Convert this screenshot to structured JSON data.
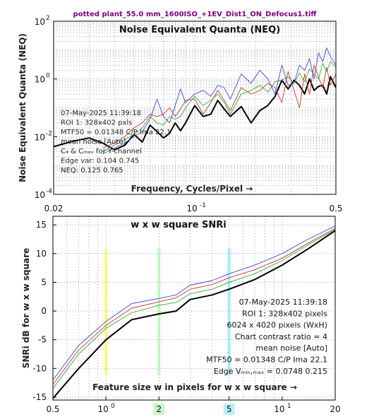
{
  "figure_title": "potted plant_55.0 mm_1600ISO_+1EV_Dist1_ON_Defocus1.tiff",
  "chart_data": [
    {
      "type": "line",
      "title": "Noise Equivalent Quanta (NEQ)",
      "xlabel": "Frequency, Cycles/Pixel →",
      "ylabel": "Noise Equivalent Quanta (NEQ)",
      "x_scale": "log",
      "y_scale": "log",
      "xlim": [
        0.02,
        0.5
      ],
      "ylim": [
        0.0001,
        100
      ],
      "x_ticks": [
        {
          "v": 0.02,
          "label": "0.02"
        },
        {
          "v": 0.1,
          "label": "10",
          "exp": "-1"
        },
        {
          "v": 0.5,
          "label": "0.5"
        }
      ],
      "y_ticks": [
        {
          "v": 0.0001,
          "base": "10",
          "exp": "-4"
        },
        {
          "v": 0.01,
          "base": "10",
          "exp": "-2"
        },
        {
          "v": 1,
          "base": "10",
          "exp": "0"
        },
        {
          "v": 100,
          "base": "10",
          "exp": "2"
        }
      ],
      "grid": true,
      "annotation": [
        "07-May-2025 11:39:18",
        "ROI 1:  328x402 pxls",
        "MTF50 = 0.01348 C/P  Ima 22.1",
        "mean noise  [Auto]",
        "C₄ & Cₘₐₓ for Y-channel",
        "Edge var:  0.104  0.745",
        "NEQ:      0.125  0.765"
      ],
      "series": [
        {
          "color": "#000000",
          "x": [
            0.02,
            0.025,
            0.03,
            0.035,
            0.04,
            0.045,
            0.05,
            0.055,
            0.06,
            0.065,
            0.07,
            0.075,
            0.08,
            0.085,
            0.09,
            0.1,
            0.11,
            0.12,
            0.13,
            0.14,
            0.15,
            0.17,
            0.19,
            0.21,
            0.23,
            0.25,
            0.27,
            0.29,
            0.31,
            0.33,
            0.35,
            0.37,
            0.39,
            0.41,
            0.43,
            0.45,
            0.47,
            0.5
          ],
          "y": [
            0.0045,
            0.007,
            0.009,
            0.006,
            0.0035,
            0.005,
            0.012,
            0.0065,
            0.025,
            0.015,
            0.009,
            0.013,
            0.03,
            0.016,
            0.03,
            0.12,
            0.05,
            0.06,
            0.18,
            0.09,
            0.05,
            0.11,
            0.03,
            0.08,
            0.12,
            0.25,
            0.9,
            0.45,
            0.9,
            0.6,
            0.3,
            1.0,
            0.4,
            0.55,
            0.6,
            0.3,
            1.2,
            0.5
          ]
        },
        {
          "color": "#cc3333",
          "x": [
            0.035,
            0.04,
            0.045,
            0.05,
            0.055,
            0.06,
            0.065,
            0.07,
            0.075,
            0.08,
            0.085,
            0.09,
            0.1,
            0.11,
            0.12,
            0.13,
            0.14,
            0.15,
            0.17,
            0.19,
            0.21,
            0.23,
            0.25,
            0.27,
            0.29,
            0.31,
            0.33,
            0.35,
            0.37,
            0.39,
            0.41,
            0.43,
            0.45,
            0.47,
            0.5
          ],
          "y": [
            0.004,
            0.006,
            0.01,
            0.02,
            0.03,
            0.06,
            0.05,
            0.06,
            0.1,
            0.05,
            0.09,
            0.18,
            0.2,
            0.06,
            0.15,
            0.4,
            0.18,
            0.08,
            0.5,
            0.3,
            0.4,
            0.7,
            0.5,
            0.15,
            1.8,
            0.4,
            0.1,
            1.5,
            0.3,
            3.0,
            1.2,
            0.5,
            2.5,
            0.6,
            1.5
          ]
        },
        {
          "color": "#33aa33",
          "x": [
            0.035,
            0.04,
            0.045,
            0.05,
            0.055,
            0.06,
            0.065,
            0.07,
            0.075,
            0.08,
            0.085,
            0.09,
            0.1,
            0.11,
            0.12,
            0.13,
            0.14,
            0.15,
            0.17,
            0.19,
            0.21,
            0.23,
            0.25,
            0.27,
            0.29,
            0.31,
            0.33,
            0.35,
            0.37,
            0.39,
            0.41,
            0.43,
            0.45,
            0.47,
            0.5
          ],
          "y": [
            0.003,
            0.005,
            0.008,
            0.012,
            0.02,
            0.05,
            0.03,
            0.025,
            0.05,
            0.04,
            0.05,
            0.1,
            0.25,
            0.12,
            0.18,
            0.3,
            0.15,
            0.06,
            0.3,
            0.4,
            0.6,
            0.35,
            0.8,
            0.9,
            1.2,
            0.7,
            1.6,
            0.8,
            2.2,
            1.5,
            1.0,
            3.5,
            1.8,
            4.0,
            2.5
          ]
        },
        {
          "color": "#4444cc",
          "x": [
            0.035,
            0.04,
            0.045,
            0.05,
            0.055,
            0.06,
            0.065,
            0.07,
            0.075,
            0.08,
            0.085,
            0.09,
            0.1,
            0.11,
            0.12,
            0.13,
            0.14,
            0.15,
            0.17,
            0.19,
            0.21,
            0.23,
            0.25,
            0.27,
            0.29,
            0.31,
            0.33,
            0.35,
            0.37,
            0.39,
            0.41,
            0.43,
            0.45,
            0.47,
            0.5
          ],
          "y": [
            0.0025,
            0.004,
            0.006,
            0.01,
            0.015,
            0.04,
            0.2,
            0.05,
            0.03,
            0.12,
            0.45,
            0.15,
            0.3,
            0.4,
            0.25,
            0.6,
            0.5,
            0.2,
            1.5,
            0.7,
            2.0,
            1.0,
            0.3,
            3.0,
            0.6,
            0.7,
            3.0,
            2.0,
            5.0,
            1.0,
            8.0,
            4.0,
            12.0,
            6.0,
            3.0
          ]
        }
      ]
    },
    {
      "type": "line",
      "title": "w x w square SNRi",
      "xlabel": "Feature size w in pixels for w x w square →",
      "ylabel": "SNRi dB for w x w square",
      "x_scale": "log",
      "xlim": [
        0.5,
        20
      ],
      "ylim": [
        -15.5,
        16.5
      ],
      "x_ticks": [
        {
          "v": 0.5,
          "label": "0.5"
        },
        {
          "v": 1,
          "label": "10",
          "exp": "0"
        },
        {
          "v": 2,
          "label": "2",
          "highlight": "#88ee88"
        },
        {
          "v": 5,
          "label": "5",
          "highlight": "#66ddee"
        },
        {
          "v": 10,
          "label": "10",
          "exp": "1"
        },
        {
          "v": 20,
          "label": "20"
        }
      ],
      "y_ticks": [
        -15,
        -10,
        -5,
        0,
        5,
        10,
        15
      ],
      "grid": true,
      "vertical_markers": [
        {
          "x": 1,
          "color": "#ffff00"
        },
        {
          "x": 2,
          "color": "#88ff88"
        },
        {
          "x": 5,
          "color": "#55ddff"
        }
      ],
      "annotation": [
        "07-May-2025 11:39:18",
        "ROI 1:  328x402 pixels",
        "6024 x 4020 pixels (WxH)",
        "Chart contrast ratio = 4",
        "mean noise  [Auto]",
        "MTF50 = 0.01348 C/P  Ima 22.1",
        "Edge Vₘᵢₙ,ₘₐₓ = 0.0748 0.215"
      ],
      "series": [
        {
          "color": "#000000",
          "x": [
            0.5,
            0.7,
            1.0,
            1.4,
            2.0,
            2.5,
            3.0,
            4.0,
            5.0,
            7.0,
            10.0,
            14.0,
            20.0
          ],
          "y": [
            -15.2,
            -10.0,
            -5.0,
            -1.5,
            -0.5,
            0.0,
            2.0,
            2.8,
            3.8,
            5.5,
            8.0,
            10.8,
            14.0
          ]
        },
        {
          "color": "#33aa33",
          "x": [
            0.5,
            0.7,
            1.0,
            1.4,
            2.0,
            2.5,
            3.0,
            4.0,
            5.0,
            7.0,
            10.0,
            14.0,
            20.0
          ],
          "y": [
            -13.5,
            -7.5,
            -3.0,
            -0.3,
            1.0,
            1.5,
            3.0,
            3.8,
            5.0,
            6.5,
            8.8,
            11.5,
            14.2
          ]
        },
        {
          "color": "#cc3333",
          "x": [
            0.5,
            0.7,
            1.0,
            1.4,
            2.0,
            2.5,
            3.0,
            4.0,
            5.0,
            7.0,
            10.0,
            14.0,
            20.0
          ],
          "y": [
            -12.8,
            -6.8,
            -2.5,
            0.5,
            1.6,
            2.3,
            3.8,
            4.6,
            5.8,
            7.2,
            9.2,
            11.8,
            14.4
          ]
        },
        {
          "color": "#4444cc",
          "x": [
            0.5,
            0.7,
            1.0,
            1.4,
            2.0,
            2.5,
            3.0,
            4.0,
            5.0,
            7.0,
            10.0,
            14.0,
            20.0
          ],
          "y": [
            -12.0,
            -6.0,
            -1.8,
            1.3,
            2.2,
            2.8,
            4.5,
            5.3,
            6.5,
            8.0,
            10.0,
            12.5,
            14.8
          ]
        }
      ]
    }
  ]
}
